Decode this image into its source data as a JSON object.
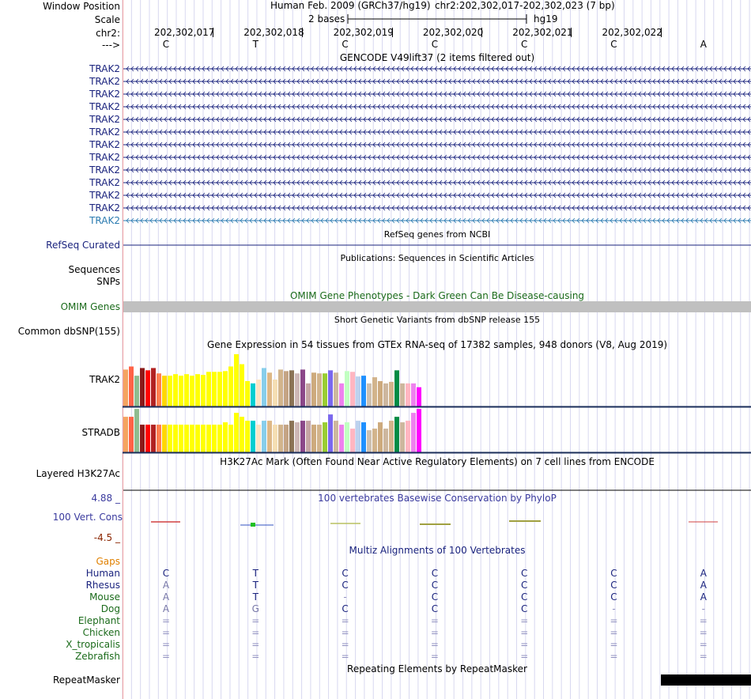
{
  "header": {
    "window_position_label": "Window Position",
    "assembly": "Human Feb. 2009 (GRCh37/hg19)",
    "position": "chr2:202,302,017-202,302,023 (7 bp)",
    "scale_label": "Scale",
    "scale_text": "2 bases",
    "scale_assembly": "hg19",
    "chrom_label": "chr2:",
    "strand_label": "--->",
    "ticks": [
      "202,302,017",
      "202,302,018",
      "202,302,019",
      "202,302,020",
      "202,302,021",
      "202,302,022"
    ],
    "bases": [
      "C",
      "T",
      "C",
      "C",
      "C",
      "C",
      "A"
    ]
  },
  "gencode": {
    "title": "GENCODE V49lift37 (2 items filtered out)",
    "transcripts": [
      "TRAK2",
      "TRAK2",
      "TRAK2",
      "TRAK2",
      "TRAK2",
      "TRAK2",
      "TRAK2",
      "TRAK2",
      "TRAK2",
      "TRAK2",
      "TRAK2",
      "TRAK2",
      "TRAK2"
    ]
  },
  "refseq": {
    "title": "RefSeq genes from NCBI",
    "label": "RefSeq Curated"
  },
  "publications": {
    "title": "Publications: Sequences in Scientific Articles",
    "label_sequences": "Sequences",
    "label_snps": "SNPs"
  },
  "omim": {
    "title": "OMIM Gene Phenotypes - Dark Green Can Be Disease-causing",
    "label": "OMIM Genes"
  },
  "dbsnp": {
    "title": "Short Genetic Variants from dbSNP release 155",
    "label": "Common dbSNP(155)"
  },
  "gtex": {
    "title": "Gene Expression in 54 tissues from GTEx RNA-seq of 17382 samples, 948 donors (V8, Aug 2019)",
    "colors": [
      "#f4a460",
      "#ff6347",
      "#8fbc8f",
      "#8b1a1a",
      "#ff0000",
      "#b22222",
      "#ff7f50",
      "#ffd700",
      "#ffff00",
      "#ffff00",
      "#ffff00",
      "#ffff00",
      "#ffff00",
      "#ffff00",
      "#ffff00",
      "#ffff00",
      "#ffff00",
      "#ffff00",
      "#ffff00",
      "#ffff00",
      "#ffff00",
      "#ffff00",
      "#ffff00",
      "#00ced1",
      "#ffe4c4",
      "#87ceeb",
      "#deb887",
      "#f5deb3",
      "#d2b48c",
      "#c4a484",
      "#8b7355",
      "#cdb7b5",
      "#8b4789",
      "#c5a5a5",
      "#cdaa7d",
      "#d2b48c",
      "#9acd32",
      "#7b68ee",
      "#cdb79e",
      "#ee82ee",
      "#c1ffc1",
      "#ffb6c1",
      "#bcd2ee",
      "#1e90ff",
      "#cdc0b0",
      "#d2b48c",
      "#cdaa7d",
      "#cdb79e",
      "#d2b48c",
      "#008b45",
      "#cdb79e",
      "#ffb6c1",
      "#ee82ee",
      "#ff00ff"
    ],
    "genes": [
      {
        "name": "TRAK2",
        "values": [
          48,
          52,
          40,
          50,
          47,
          50,
          43,
          40,
          40,
          42,
          40,
          42,
          40,
          42,
          41,
          45,
          45,
          45,
          46,
          52,
          68,
          55,
          33,
          30,
          35,
          50,
          44,
          35,
          48,
          46,
          47,
          43,
          48,
          30,
          44,
          43,
          43,
          47,
          44,
          30,
          46,
          45,
          39,
          40,
          30,
          38,
          33,
          30,
          32,
          47,
          30,
          30,
          30,
          25
        ]
      },
      {
        "name": "STRADB",
        "values": [
          45,
          45,
          55,
          35,
          35,
          35,
          35,
          35,
          35,
          35,
          35,
          35,
          35,
          35,
          35,
          35,
          35,
          35,
          38,
          35,
          50,
          45,
          40,
          40,
          35,
          40,
          40,
          35,
          35,
          35,
          40,
          38,
          40,
          40,
          35,
          35,
          38,
          48,
          40,
          35,
          38,
          30,
          40,
          38,
          28,
          30,
          38,
          30,
          40,
          45,
          38,
          40,
          50,
          55
        ]
      }
    ]
  },
  "h3k27ac": {
    "title": "H3K27Ac Mark (Often Found Near Active Regulatory Elements) on 7 cell lines from ENCODE",
    "label": "Layered H3K27Ac"
  },
  "phylop": {
    "title": "100 vertebrates Basewise Conservation by PhyloP",
    "label": "100 Vert. Cons",
    "max": "4.88 _",
    "min": "-4.5 _"
  },
  "multiz": {
    "title": "Multiz Alignments of 100 Vertebrates",
    "gaps_label": "Gaps",
    "species": [
      {
        "name": "Human",
        "bases": [
          "C",
          "T",
          "C",
          "C",
          "C",
          "C",
          "A"
        ],
        "color": "#1a237e"
      },
      {
        "name": "Rhesus",
        "bases": [
          "A",
          "T",
          "C",
          "C",
          "C",
          "C",
          "A"
        ],
        "color": "#1a237e"
      },
      {
        "name": "Mouse",
        "bases": [
          "A",
          "T",
          "-",
          "C",
          "C",
          "C",
          "A"
        ],
        "color": "#1b6b1b"
      },
      {
        "name": "Dog",
        "bases": [
          "A",
          "G",
          "C",
          "C",
          "C",
          "-",
          "-"
        ],
        "color": "#1b6b1b"
      },
      {
        "name": "Elephant",
        "bases": [
          "=",
          "=",
          "=",
          "=",
          "=",
          "=",
          "="
        ],
        "color": "#1b6b1b"
      },
      {
        "name": "Chicken",
        "bases": [
          "=",
          "=",
          "=",
          "=",
          "=",
          "=",
          "="
        ],
        "color": "#1b6b1b"
      },
      {
        "name": "X_tropicalis",
        "bases": [
          "=",
          "=",
          "=",
          "=",
          "=",
          "=",
          "="
        ],
        "color": "#1b6b1b"
      },
      {
        "name": "Zebrafish",
        "bases": [
          "=",
          "=",
          "=",
          "=",
          "=",
          "=",
          "="
        ],
        "color": "#1b6b1b"
      }
    ]
  },
  "repeatmasker": {
    "title": "Repeating Elements by RepeatMasker",
    "label": "RepeatMasker"
  }
}
